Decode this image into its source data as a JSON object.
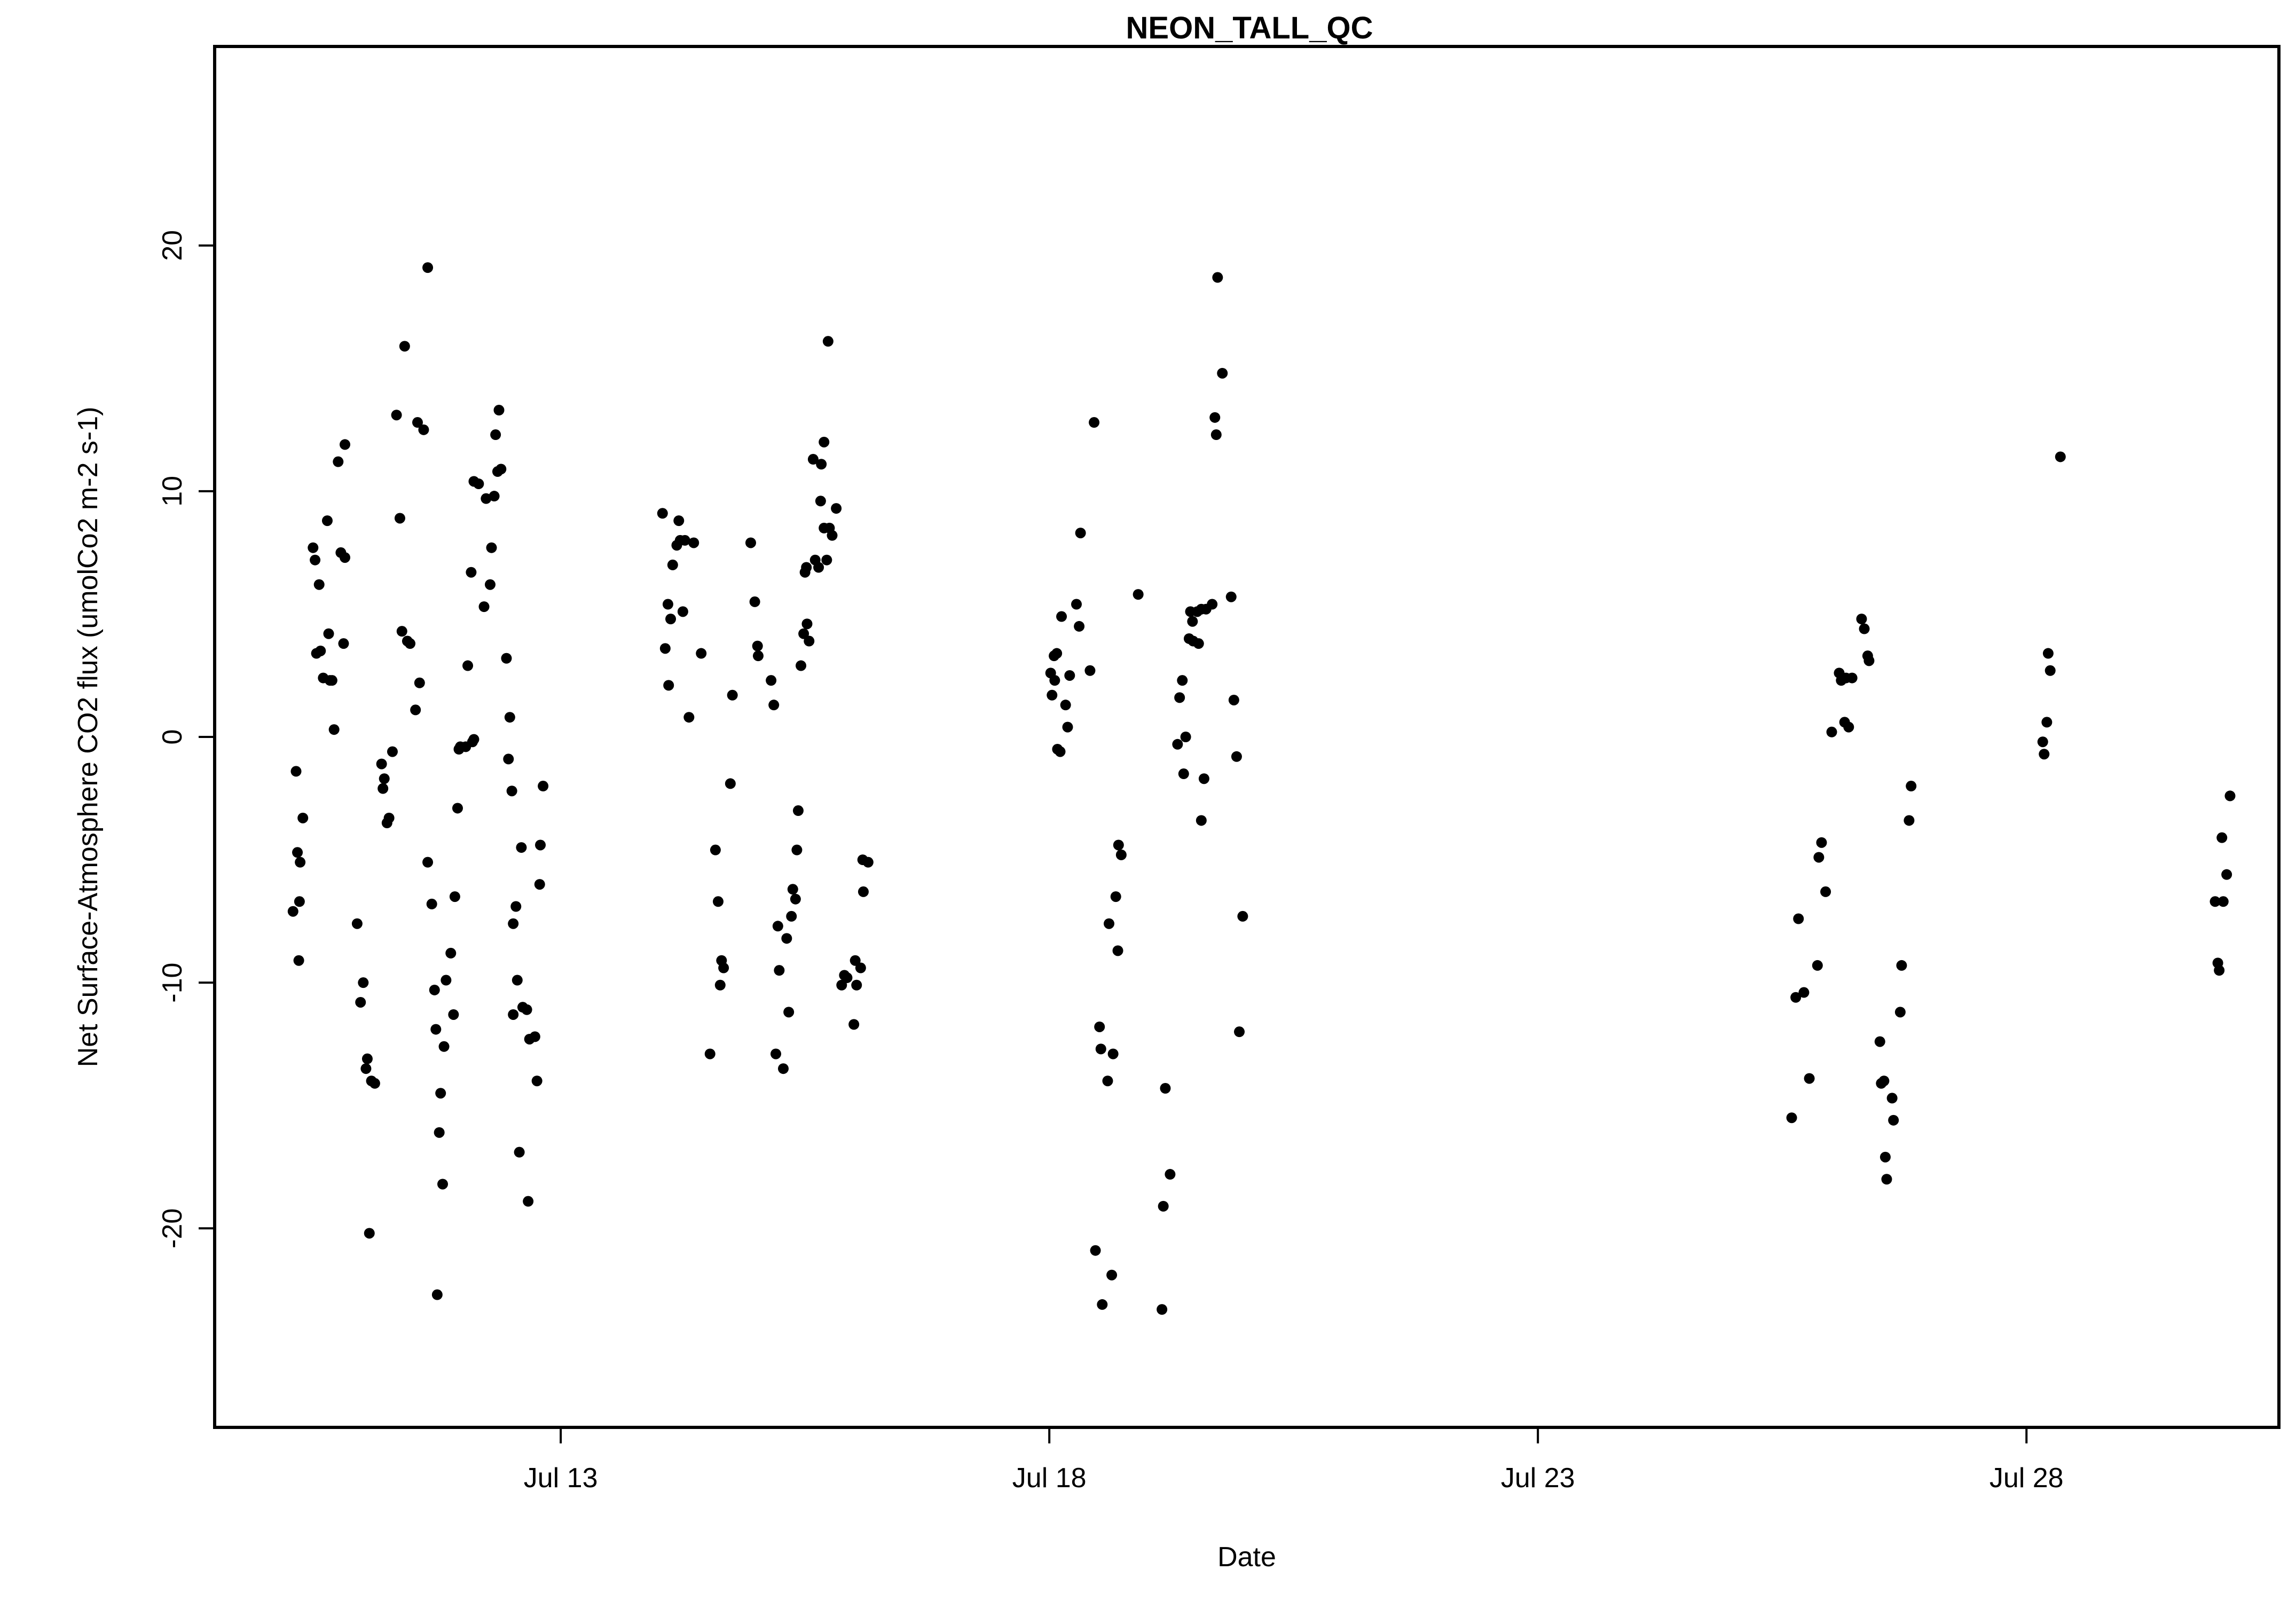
{
  "chart_data": {
    "type": "scatter",
    "title": "NEON_TALL_QC",
    "xlabel": "Date",
    "ylabel": "Net Surface-Atmosphere CO2 flux (umolCo2 m-2 s-1)",
    "x_axis": "date",
    "xlim": [
      "Jul 9 11:00",
      "Jul 30 14:00"
    ],
    "ylim": [
      -28.1,
      28.1
    ],
    "x_ticks": [
      "Jul 13",
      "Jul 18",
      "Jul 23",
      "Jul 28"
    ],
    "y_ticks": [
      -20,
      -10,
      0,
      10,
      20
    ],
    "grid": false,
    "legend": "none",
    "point_color": "#000000",
    "points": [
      {
        "x": "Jul 10 06:15",
        "y": -7.1
      },
      {
        "x": "Jul 10 07:00",
        "y": -1.4
      },
      {
        "x": "Jul 10 07:20",
        "y": -4.7
      },
      {
        "x": "Jul 10 07:40",
        "y": -9.1
      },
      {
        "x": "Jul 10 07:50",
        "y": -6.7
      },
      {
        "x": "Jul 10 08:00",
        "y": -5.1
      },
      {
        "x": "Jul 10 08:40",
        "y": -3.3
      },
      {
        "x": "Jul 10 11:10",
        "y": 7.7
      },
      {
        "x": "Jul 10 11:40",
        "y": 7.2
      },
      {
        "x": "Jul 10 12:00",
        "y": 3.4
      },
      {
        "x": "Jul 10 12:40",
        "y": 6.2
      },
      {
        "x": "Jul 10 13:00",
        "y": 3.5
      },
      {
        "x": "Jul 10 13:40",
        "y": 2.4
      },
      {
        "x": "Jul 10 14:40",
        "y": 8.8
      },
      {
        "x": "Jul 10 15:00",
        "y": 4.2
      },
      {
        "x": "Jul 10 15:20",
        "y": 2.3
      },
      {
        "x": "Jul 10 15:50",
        "y": 2.3
      },
      {
        "x": "Jul 10 16:20",
        "y": 0.3
      },
      {
        "x": "Jul 10 17:20",
        "y": 11.2
      },
      {
        "x": "Jul 10 18:00",
        "y": 7.5
      },
      {
        "x": "Jul 10 18:40",
        "y": 3.8
      },
      {
        "x": "Jul 10 19:00",
        "y": 11.9
      },
      {
        "x": "Jul 10 19:00",
        "y": 7.3
      },
      {
        "x": "Jul 10 22:00",
        "y": -7.6
      },
      {
        "x": "Jul 10 22:50",
        "y": -10.8
      },
      {
        "x": "Jul 10 23:30",
        "y": -10.0
      },
      {
        "x": "Jul 11 00:10",
        "y": -13.5
      },
      {
        "x": "Jul 11 00:30",
        "y": -13.1
      },
      {
        "x": "Jul 11 01:00",
        "y": -20.2
      },
      {
        "x": "Jul 11 01:30",
        "y": -14.0
      },
      {
        "x": "Jul 11 02:20",
        "y": -14.1
      },
      {
        "x": "Jul 11 04:00",
        "y": -1.1
      },
      {
        "x": "Jul 11 04:20",
        "y": -2.1
      },
      {
        "x": "Jul 11 04:40",
        "y": -1.7
      },
      {
        "x": "Jul 11 05:20",
        "y": -3.5
      },
      {
        "x": "Jul 11 05:50",
        "y": -3.3
      },
      {
        "x": "Jul 11 06:40",
        "y": -0.6
      },
      {
        "x": "Jul 11 07:40",
        "y": 13.1
      },
      {
        "x": "Jul 11 08:30",
        "y": 8.9
      },
      {
        "x": "Jul 11 09:00",
        "y": 4.3
      },
      {
        "x": "Jul 11 09:40",
        "y": 15.9
      },
      {
        "x": "Jul 11 10:20",
        "y": 3.9
      },
      {
        "x": "Jul 11 11:00",
        "y": 3.8
      },
      {
        "x": "Jul 11 12:20",
        "y": 1.1
      },
      {
        "x": "Jul 11 12:50",
        "y": 12.8
      },
      {
        "x": "Jul 11 13:20",
        "y": 2.2
      },
      {
        "x": "Jul 11 14:20",
        "y": 12.5
      },
      {
        "x": "Jul 11 15:20",
        "y": 19.1
      },
      {
        "x": "Jul 11 15:20",
        "y": -5.1
      },
      {
        "x": "Jul 11 16:20",
        "y": -6.8
      },
      {
        "x": "Jul 11 17:00",
        "y": -10.3
      },
      {
        "x": "Jul 11 17:20",
        "y": -11.9
      },
      {
        "x": "Jul 11 17:40",
        "y": -22.7
      },
      {
        "x": "Jul 11 18:10",
        "y": -16.1
      },
      {
        "x": "Jul 11 18:30",
        "y": -14.5
      },
      {
        "x": "Jul 11 19:00",
        "y": -18.2
      },
      {
        "x": "Jul 11 19:20",
        "y": -12.6
      },
      {
        "x": "Jul 11 19:50",
        "y": -9.9
      },
      {
        "x": "Jul 11 21:00",
        "y": -8.8
      },
      {
        "x": "Jul 11 21:40",
        "y": -11.3
      },
      {
        "x": "Jul 11 22:00",
        "y": -6.5
      },
      {
        "x": "Jul 11 22:40",
        "y": -2.9
      },
      {
        "x": "Jul 11 23:00",
        "y": -0.5
      },
      {
        "x": "Jul 11 23:20",
        "y": -0.4
      },
      {
        "x": "Jul 12 00:40",
        "y": -0.4
      },
      {
        "x": "Jul 12 01:10",
        "y": 2.9
      },
      {
        "x": "Jul 12 02:00",
        "y": 6.7
      },
      {
        "x": "Jul 12 02:20",
        "y": -0.2
      },
      {
        "x": "Jul 12 02:40",
        "y": -0.1
      },
      {
        "x": "Jul 12 02:40",
        "y": 10.4
      },
      {
        "x": "Jul 12 03:50",
        "y": 10.3
      },
      {
        "x": "Jul 12 05:10",
        "y": 5.3
      },
      {
        "x": "Jul 12 05:40",
        "y": 9.7
      },
      {
        "x": "Jul 12 06:40",
        "y": 6.2
      },
      {
        "x": "Jul 12 07:00",
        "y": 7.7
      },
      {
        "x": "Jul 12 07:40",
        "y": 9.8
      },
      {
        "x": "Jul 12 08:00",
        "y": 12.3
      },
      {
        "x": "Jul 12 08:30",
        "y": 10.8
      },
      {
        "x": "Jul 12 08:50",
        "y": 13.3
      },
      {
        "x": "Jul 12 09:20",
        "y": 10.9
      },
      {
        "x": "Jul 12 10:40",
        "y": 3.2
      },
      {
        "x": "Jul 12 11:10",
        "y": -0.9
      },
      {
        "x": "Jul 12 11:30",
        "y": 0.8
      },
      {
        "x": "Jul 12 12:00",
        "y": -2.2
      },
      {
        "x": "Jul 12 12:20",
        "y": -11.3
      },
      {
        "x": "Jul 12 12:20",
        "y": -7.6
      },
      {
        "x": "Jul 12 13:00",
        "y": -6.9
      },
      {
        "x": "Jul 12 13:20",
        "y": -9.9
      },
      {
        "x": "Jul 12 13:50",
        "y": -16.9
      },
      {
        "x": "Jul 12 14:20",
        "y": -4.5
      },
      {
        "x": "Jul 12 14:40",
        "y": -11.0
      },
      {
        "x": "Jul 12 15:40",
        "y": -11.1
      },
      {
        "x": "Jul 12 16:00",
        "y": -18.9
      },
      {
        "x": "Jul 12 16:20",
        "y": -12.3
      },
      {
        "x": "Jul 12 17:40",
        "y": -12.2
      },
      {
        "x": "Jul 12 18:10",
        "y": -14.0
      },
      {
        "x": "Jul 12 18:50",
        "y": -6.0
      },
      {
        "x": "Jul 12 19:00",
        "y": -4.4
      },
      {
        "x": "Jul 12 19:40",
        "y": -2.0
      },
      {
        "x": "Jul 14 01:00",
        "y": 9.1
      },
      {
        "x": "Jul 14 01:40",
        "y": 3.6
      },
      {
        "x": "Jul 14 02:20",
        "y": 5.4
      },
      {
        "x": "Jul 14 02:30",
        "y": 2.1
      },
      {
        "x": "Jul 14 03:00",
        "y": 4.8
      },
      {
        "x": "Jul 14 03:30",
        "y": 7.0
      },
      {
        "x": "Jul 14 04:30",
        "y": 7.8
      },
      {
        "x": "Jul 14 05:00",
        "y": 8.8
      },
      {
        "x": "Jul 14 05:20",
        "y": 8.0
      },
      {
        "x": "Jul 14 06:00",
        "y": 5.1
      },
      {
        "x": "Jul 14 06:30",
        "y": 8.0
      },
      {
        "x": "Jul 14 07:30",
        "y": 0.8
      },
      {
        "x": "Jul 14 08:40",
        "y": 7.9
      },
      {
        "x": "Jul 14 10:30",
        "y": 3.4
      },
      {
        "x": "Jul 14 12:40",
        "y": -12.9
      },
      {
        "x": "Jul 14 14:00",
        "y": -4.6
      },
      {
        "x": "Jul 14 14:40",
        "y": -6.7
      },
      {
        "x": "Jul 14 15:10",
        "y": -10.1
      },
      {
        "x": "Jul 14 15:30",
        "y": -9.1
      },
      {
        "x": "Jul 14 16:00",
        "y": -9.4
      },
      {
        "x": "Jul 14 17:40",
        "y": -1.9
      },
      {
        "x": "Jul 14 18:10",
        "y": 1.7
      },
      {
        "x": "Jul 14 22:40",
        "y": 7.9
      },
      {
        "x": "Jul 14 23:40",
        "y": 5.5
      },
      {
        "x": "Jul 15 00:20",
        "y": 3.7
      },
      {
        "x": "Jul 15 00:30",
        "y": 3.3
      },
      {
        "x": "Jul 15 03:40",
        "y": 2.3
      },
      {
        "x": "Jul 15 04:20",
        "y": 1.3
      },
      {
        "x": "Jul 15 04:50",
        "y": -12.9
      },
      {
        "x": "Jul 15 05:20",
        "y": -7.7
      },
      {
        "x": "Jul 15 05:40",
        "y": -9.5
      },
      {
        "x": "Jul 15 06:40",
        "y": -13.5
      },
      {
        "x": "Jul 15 07:30",
        "y": -8.2
      },
      {
        "x": "Jul 15 08:00",
        "y": -11.2
      },
      {
        "x": "Jul 15 08:40",
        "y": -7.3
      },
      {
        "x": "Jul 15 09:00",
        "y": -6.2
      },
      {
        "x": "Jul 15 09:40",
        "y": -6.6
      },
      {
        "x": "Jul 15 10:00",
        "y": -4.6
      },
      {
        "x": "Jul 15 10:20",
        "y": -3.0
      },
      {
        "x": "Jul 15 11:00",
        "y": 2.9
      },
      {
        "x": "Jul 15 11:40",
        "y": 4.2
      },
      {
        "x": "Jul 15 12:00",
        "y": 6.7
      },
      {
        "x": "Jul 15 12:20",
        "y": 6.9
      },
      {
        "x": "Jul 15 12:30",
        "y": 4.6
      },
      {
        "x": "Jul 15 13:00",
        "y": 3.9
      },
      {
        "x": "Jul 15 14:00",
        "y": 11.3
      },
      {
        "x": "Jul 15 14:30",
        "y": 7.2
      },
      {
        "x": "Jul 15 15:20",
        "y": 6.9
      },
      {
        "x": "Jul 15 15:50",
        "y": 9.6
      },
      {
        "x": "Jul 15 16:00",
        "y": 11.1
      },
      {
        "x": "Jul 15 16:40",
        "y": 12.0
      },
      {
        "x": "Jul 15 16:40",
        "y": 8.5
      },
      {
        "x": "Jul 15 17:20",
        "y": 7.2
      },
      {
        "x": "Jul 15 17:40",
        "y": 16.1
      },
      {
        "x": "Jul 15 18:00",
        "y": 8.5
      },
      {
        "x": "Jul 15 18:40",
        "y": 8.2
      },
      {
        "x": "Jul 15 19:40",
        "y": 9.3
      },
      {
        "x": "Jul 15 21:00",
        "y": -10.1
      },
      {
        "x": "Jul 15 21:40",
        "y": -9.7
      },
      {
        "x": "Jul 15 22:20",
        "y": -9.8
      },
      {
        "x": "Jul 16 00:00",
        "y": -11.7
      },
      {
        "x": "Jul 16 00:20",
        "y": -9.1
      },
      {
        "x": "Jul 16 00:40",
        "y": -10.1
      },
      {
        "x": "Jul 16 01:40",
        "y": -9.4
      },
      {
        "x": "Jul 16 02:10",
        "y": -5.0
      },
      {
        "x": "Jul 16 02:20",
        "y": -6.3
      },
      {
        "x": "Jul 16 03:30",
        "y": -5.1
      },
      {
        "x": "Jul 18 00:20",
        "y": 2.6
      },
      {
        "x": "Jul 18 00:40",
        "y": 1.7
      },
      {
        "x": "Jul 18 01:10",
        "y": 3.3
      },
      {
        "x": "Jul 18 01:20",
        "y": 2.3
      },
      {
        "x": "Jul 18 01:50",
        "y": 3.4
      },
      {
        "x": "Jul 18 02:00",
        "y": -0.5
      },
      {
        "x": "Jul 18 02:40",
        "y": -0.6
      },
      {
        "x": "Jul 18 03:00",
        "y": 4.9
      },
      {
        "x": "Jul 18 04:00",
        "y": 1.3
      },
      {
        "x": "Jul 18 04:30",
        "y": 0.4
      },
      {
        "x": "Jul 18 05:00",
        "y": 2.5
      },
      {
        "x": "Jul 18 06:40",
        "y": 5.4
      },
      {
        "x": "Jul 18 07:20",
        "y": 4.5
      },
      {
        "x": "Jul 18 07:40",
        "y": 8.3
      },
      {
        "x": "Jul 18 10:00",
        "y": 2.7
      },
      {
        "x": "Jul 18 11:00",
        "y": 12.8
      },
      {
        "x": "Jul 18 11:20",
        "y": -20.9
      },
      {
        "x": "Jul 18 12:20",
        "y": -11.8
      },
      {
        "x": "Jul 18 12:40",
        "y": -12.7
      },
      {
        "x": "Jul 18 13:00",
        "y": -23.1
      },
      {
        "x": "Jul 18 14:20",
        "y": -14.0
      },
      {
        "x": "Jul 18 14:40",
        "y": -7.6
      },
      {
        "x": "Jul 18 15:20",
        "y": -21.9
      },
      {
        "x": "Jul 18 15:40",
        "y": -12.9
      },
      {
        "x": "Jul 18 16:20",
        "y": -6.5
      },
      {
        "x": "Jul 18 16:50",
        "y": -8.7
      },
      {
        "x": "Jul 18 17:00",
        "y": -4.4
      },
      {
        "x": "Jul 18 17:40",
        "y": -4.8
      },
      {
        "x": "Jul 18 21:50",
        "y": 5.8
      },
      {
        "x": "Jul 19 03:40",
        "y": -23.3
      },
      {
        "x": "Jul 19 04:00",
        "y": -19.1
      },
      {
        "x": "Jul 19 04:30",
        "y": -14.3
      },
      {
        "x": "Jul 19 05:40",
        "y": -17.8
      },
      {
        "x": "Jul 19 07:30",
        "y": -0.3
      },
      {
        "x": "Jul 19 08:00",
        "y": 1.6
      },
      {
        "x": "Jul 19 08:40",
        "y": 2.3
      },
      {
        "x": "Jul 19 09:00",
        "y": -1.5
      },
      {
        "x": "Jul 19 09:30",
        "y": 0.0
      },
      {
        "x": "Jul 19 10:20",
        "y": 4.0
      },
      {
        "x": "Jul 19 10:40",
        "y": 5.1
      },
      {
        "x": "Jul 19 11:10",
        "y": 4.7
      },
      {
        "x": "Jul 19 11:20",
        "y": 3.9
      },
      {
        "x": "Jul 19 12:20",
        "y": 5.1
      },
      {
        "x": "Jul 19 12:40",
        "y": 3.8
      },
      {
        "x": "Jul 19 13:20",
        "y": -3.4
      },
      {
        "x": "Jul 19 13:20",
        "y": 5.2
      },
      {
        "x": "Jul 19 14:00",
        "y": -1.7
      },
      {
        "x": "Jul 19 14:30",
        "y": 5.2
      },
      {
        "x": "Jul 19 16:00",
        "y": 5.4
      },
      {
        "x": "Jul 19 16:40",
        "y": 13.0
      },
      {
        "x": "Jul 19 17:00",
        "y": 12.3
      },
      {
        "x": "Jul 19 17:20",
        "y": 18.7
      },
      {
        "x": "Jul 19 18:30",
        "y": 14.8
      },
      {
        "x": "Jul 19 20:40",
        "y": 5.7
      },
      {
        "x": "Jul 19 21:20",
        "y": 1.5
      },
      {
        "x": "Jul 19 22:00",
        "y": -0.8
      },
      {
        "x": "Jul 19 22:40",
        "y": -12.0
      },
      {
        "x": "Jul 19 23:30",
        "y": -7.3
      },
      {
        "x": "Jul 25 14:20",
        "y": -15.5
      },
      {
        "x": "Jul 25 15:20",
        "y": -10.6
      },
      {
        "x": "Jul 25 16:00",
        "y": -7.4
      },
      {
        "x": "Jul 25 17:20",
        "y": -10.4
      },
      {
        "x": "Jul 25 18:40",
        "y": -13.9
      },
      {
        "x": "Jul 25 20:40",
        "y": -9.3
      },
      {
        "x": "Jul 25 21:00",
        "y": -4.9
      },
      {
        "x": "Jul 25 21:40",
        "y": -4.3
      },
      {
        "x": "Jul 25 22:40",
        "y": -6.3
      },
      {
        "x": "Jul 26 00:10",
        "y": 0.2
      },
      {
        "x": "Jul 26 02:00",
        "y": 2.6
      },
      {
        "x": "Jul 26 02:30",
        "y": 2.3
      },
      {
        "x": "Jul 26 03:20",
        "y": 0.6
      },
      {
        "x": "Jul 26 03:40",
        "y": 2.4
      },
      {
        "x": "Jul 26 04:20",
        "y": 0.4
      },
      {
        "x": "Jul 26 05:10",
        "y": 2.4
      },
      {
        "x": "Jul 26 07:30",
        "y": 4.8
      },
      {
        "x": "Jul 26 08:10",
        "y": 4.4
      },
      {
        "x": "Jul 26 09:00",
        "y": 3.3
      },
      {
        "x": "Jul 26 09:20",
        "y": 3.1
      },
      {
        "x": "Jul 26 12:00",
        "y": -12.4
      },
      {
        "x": "Jul 26 12:20",
        "y": -14.1
      },
      {
        "x": "Jul 26 13:00",
        "y": -14.0
      },
      {
        "x": "Jul 26 13:20",
        "y": -17.1
      },
      {
        "x": "Jul 26 13:40",
        "y": -18.0
      },
      {
        "x": "Jul 26 15:00",
        "y": -14.7
      },
      {
        "x": "Jul 26 15:20",
        "y": -15.6
      },
      {
        "x": "Jul 26 17:20",
        "y": -9.3
      },
      {
        "x": "Jul 26 17:00",
        "y": -11.2
      },
      {
        "x": "Jul 26 19:10",
        "y": -3.4
      },
      {
        "x": "Jul 26 19:40",
        "y": -2.0
      },
      {
        "x": "Jul 28 04:00",
        "y": -0.2
      },
      {
        "x": "Jul 28 04:20",
        "y": -0.7
      },
      {
        "x": "Jul 28 05:00",
        "y": 0.6
      },
      {
        "x": "Jul 28 05:20",
        "y": 3.4
      },
      {
        "x": "Jul 28 05:50",
        "y": 2.7
      },
      {
        "x": "Jul 28 08:20",
        "y": 11.4
      },
      {
        "x": "Jul 29 22:20",
        "y": -6.7
      },
      {
        "x": "Jul 29 23:00",
        "y": -9.2
      },
      {
        "x": "Jul 29 23:20",
        "y": -9.5
      },
      {
        "x": "Jul 30 00:00",
        "y": -4.1
      },
      {
        "x": "Jul 30 00:20",
        "y": -6.7
      },
      {
        "x": "Jul 30 01:10",
        "y": -5.6
      },
      {
        "x": "Jul 30 02:00",
        "y": -2.4
      }
    ]
  }
}
